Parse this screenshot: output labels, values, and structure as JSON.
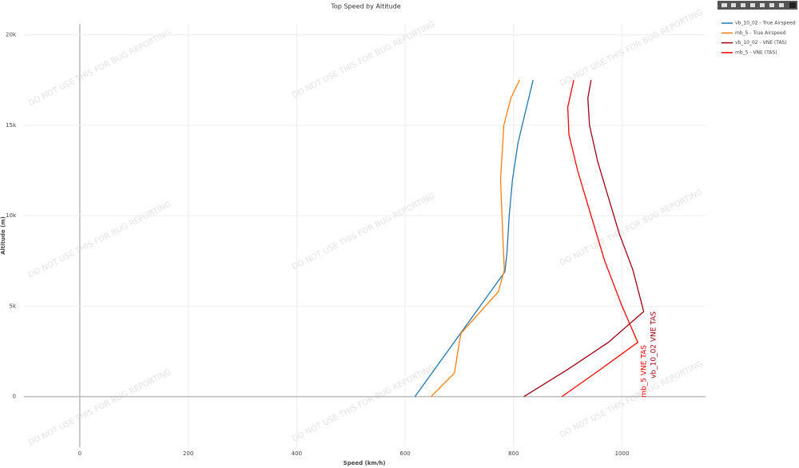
{
  "chart_data": {
    "type": "line",
    "title": "Top Speed by Altitude",
    "x_label": "Speed (km/h)",
    "y_label": "Altitude (m)",
    "watermark": "DO NOT USE THIS FOR BUG REPORTING",
    "xlim": [
      -103,
      1154
    ],
    "ylim": [
      -2800,
      20600
    ],
    "xticks": [
      0,
      200,
      400,
      600,
      800,
      1000
    ],
    "yticks": [
      0,
      {
        "value": 5000,
        "label": "5k"
      },
      {
        "value": 10000,
        "label": "10k"
      },
      {
        "value": 15000,
        "label": "15k"
      },
      {
        "value": 20000,
        "label": "20k"
      }
    ],
    "grid": true,
    "legend": "outside-right",
    "series": [
      {
        "name": "vb_10_02 - True Airspeed",
        "color": "#1f77b4",
        "x": [
          618,
          784,
          788,
          792,
          798,
          808,
          820,
          836
        ],
        "values": [
          0,
          6900,
          8000,
          10000,
          12000,
          14000,
          15500,
          17500
        ]
      },
      {
        "name": "mb_5 - True Airspeed",
        "color": "#ff7f0e",
        "x": [
          648,
          691,
          700,
          703,
          772,
          783,
          780,
          776,
          782,
          795,
          811
        ],
        "values": [
          0,
          1300,
          3000,
          3500,
          5800,
          7000,
          9000,
          12000,
          15000,
          16500,
          17500
        ]
      },
      {
        "name": "vb_10_02 - VNE (TAS)",
        "color": "#a00010",
        "x": [
          819,
          900,
          975,
          1040,
          1020,
          995,
          975,
          955,
          940,
          937,
          943
        ],
        "values": [
          0,
          1500,
          3000,
          4700,
          7000,
          9000,
          11000,
          13000,
          15000,
          16500,
          17500
        ]
      },
      {
        "name": "mb_5 - VNE (TAS)",
        "color": "#ff0000",
        "x": [
          889,
          960,
          1029,
          1000,
          968,
          943,
          918,
          902,
          900,
          911
        ],
        "values": [
          0,
          1500,
          3000,
          5000,
          7500,
          10000,
          12500,
          14500,
          16000,
          17500
        ]
      }
    ],
    "annotations": [
      "vb_10_02 VNE TAS",
      "mb_5 VNE TAS"
    ]
  }
}
